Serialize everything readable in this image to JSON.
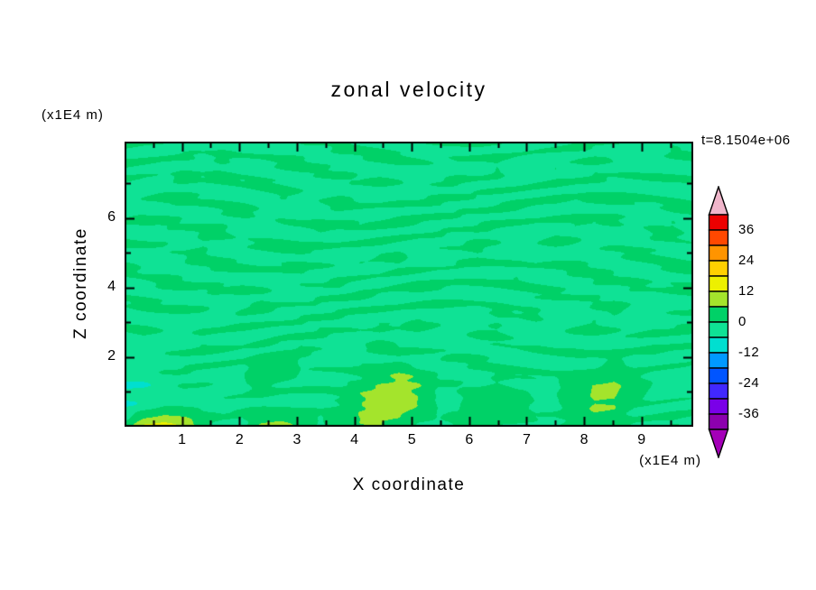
{
  "chart_data": {
    "type": "contour",
    "title": "zonal velocity",
    "xlabel": "X coordinate",
    "ylabel": "Z coordinate",
    "x_unit_label": "(x1E4 m)",
    "y_unit_label": "(x1E4 m)",
    "time_label": "t=8.1504e+06",
    "x_range": [
      0,
      9.9
    ],
    "z_range": [
      0,
      8.2
    ],
    "x_ticks": [
      1,
      2,
      3,
      4,
      5,
      6,
      7,
      8,
      9
    ],
    "x_minor_ticks": [
      0.5,
      1.5,
      2.5,
      3.5,
      4.5,
      5.5,
      6.5,
      7.5,
      8.5,
      9.5
    ],
    "y_ticks": [
      2,
      4,
      6
    ],
    "y_minor_ticks": [
      1,
      3,
      5,
      7
    ],
    "levels": [
      -42,
      -36,
      -30,
      -24,
      -18,
      -12,
      -6,
      0,
      6,
      12,
      18,
      24,
      30,
      36,
      42
    ],
    "cell_colors": [
      "#8C00AE",
      "#7A00E8",
      "#4128FF",
      "#0055FF",
      "#0099FF",
      "#00DFD0",
      "#0FE295",
      "#00D167",
      "#A4E42C",
      "#EDF000",
      "#FFD000",
      "#FF9400",
      "#FF4800",
      "#EC0000"
    ],
    "arrow_colors": {
      "top": "#F0B6CB",
      "bottom": "#A400B8"
    },
    "colorbar_labels": [
      36,
      24,
      12,
      0,
      -12,
      -24,
      -36
    ],
    "grid": false,
    "legend_position": "right-colorbar",
    "base_offset": -0.5,
    "field": [
      [
        0,
        0,
        1,
        0,
        -1,
        0,
        0,
        1,
        0,
        0,
        -1,
        0,
        1,
        0,
        0,
        -1,
        0,
        0,
        1,
        0,
        -1,
        0,
        0,
        1,
        0,
        0,
        -1,
        0,
        1,
        0
      ],
      [
        1,
        0,
        -1,
        0,
        0,
        1,
        0,
        -1,
        0,
        1,
        0,
        0,
        -1,
        0,
        1,
        0,
        -1,
        0,
        0,
        1,
        0,
        -1,
        0,
        0,
        1,
        0,
        0,
        -1,
        0,
        1
      ],
      [
        0,
        -1,
        0,
        1,
        0,
        0,
        -1,
        0,
        1,
        0,
        -1,
        0,
        0,
        1,
        0,
        -1,
        0,
        1,
        0,
        0,
        -1,
        0,
        1,
        0,
        0,
        -1,
        0,
        1,
        0,
        -1
      ],
      [
        -1,
        0,
        1,
        0,
        -1,
        0,
        1,
        0,
        0,
        -1,
        0,
        1,
        0,
        -1,
        0,
        0,
        1,
        0,
        -1,
        0,
        1,
        0,
        0,
        -1,
        0,
        1,
        0,
        -1,
        0,
        0
      ],
      [
        0,
        1,
        0,
        -1,
        0,
        1,
        0,
        -1,
        0,
        0,
        1,
        0,
        -1,
        0,
        1,
        0,
        0,
        -1,
        0,
        1,
        0,
        -1,
        0,
        1,
        0,
        0,
        -1,
        0,
        1,
        0
      ],
      [
        0,
        -1,
        0,
        0,
        1,
        0,
        -1,
        0,
        1,
        0,
        0,
        -1,
        0,
        1,
        0,
        -1,
        0,
        0,
        1,
        0,
        -1,
        0,
        1,
        0,
        -1,
        0,
        0,
        1,
        0,
        -1
      ],
      [
        1,
        0,
        -1,
        0,
        1,
        0,
        0,
        -1,
        0,
        1,
        0,
        -1,
        0,
        0,
        1,
        0,
        -1,
        0,
        1,
        0,
        0,
        -1,
        0,
        1,
        0,
        -1,
        0,
        0,
        1,
        0
      ],
      [
        0,
        0,
        1,
        0,
        -1,
        0,
        1,
        0,
        -1,
        0,
        0,
        1,
        0,
        -1,
        0,
        1,
        0,
        -1,
        0,
        0,
        1,
        0,
        -1,
        0,
        1,
        0,
        0,
        -1,
        0,
        1
      ],
      [
        -1,
        0,
        0,
        1,
        0,
        -1,
        0,
        1,
        0,
        -1,
        0,
        0,
        1,
        0,
        -1,
        0,
        1,
        0,
        -1,
        0,
        0,
        1,
        0,
        -1,
        0,
        1,
        0,
        -1,
        0,
        0
      ],
      [
        0,
        1,
        0,
        -1,
        0,
        0,
        1,
        0,
        -1,
        0,
        1,
        0,
        -1,
        0,
        0,
        1,
        0,
        -1,
        0,
        1,
        0,
        0,
        -1,
        0,
        1,
        0,
        -1,
        0,
        0,
        1
      ],
      [
        0,
        0,
        -1,
        0,
        1,
        0,
        -1,
        0,
        0,
        1,
        0,
        -1,
        0,
        1,
        0,
        0,
        -1,
        0,
        1,
        0,
        -1,
        0,
        0,
        1,
        0,
        -1,
        0,
        1,
        0,
        0
      ],
      [
        -2,
        -3,
        0,
        0,
        0,
        0,
        0,
        4,
        5,
        0,
        0,
        0,
        0,
        0,
        2,
        0,
        0,
        0,
        0,
        0,
        0,
        0,
        0,
        0,
        0,
        3,
        0,
        0,
        0,
        0
      ],
      [
        -6,
        -5,
        -2,
        0,
        0,
        0,
        0,
        2,
        0,
        0,
        0,
        0,
        3,
        8,
        10,
        7,
        0,
        0,
        0,
        2,
        0,
        0,
        0,
        4,
        7,
        8,
        3,
        0,
        0,
        0
      ],
      [
        -5,
        -4,
        0,
        0,
        0,
        0,
        0,
        0,
        0,
        0,
        0,
        2,
        7,
        9,
        9,
        6,
        0,
        0,
        5,
        6,
        3,
        0,
        0,
        3,
        7,
        6,
        0,
        0,
        0,
        0
      ],
      [
        2,
        14,
        15,
        12,
        4,
        0,
        0,
        10,
        11,
        5,
        0,
        4,
        6,
        6,
        5,
        0,
        0,
        2,
        3,
        0,
        0,
        0,
        0,
        4,
        5,
        4,
        0,
        0,
        2,
        0
      ]
    ]
  }
}
